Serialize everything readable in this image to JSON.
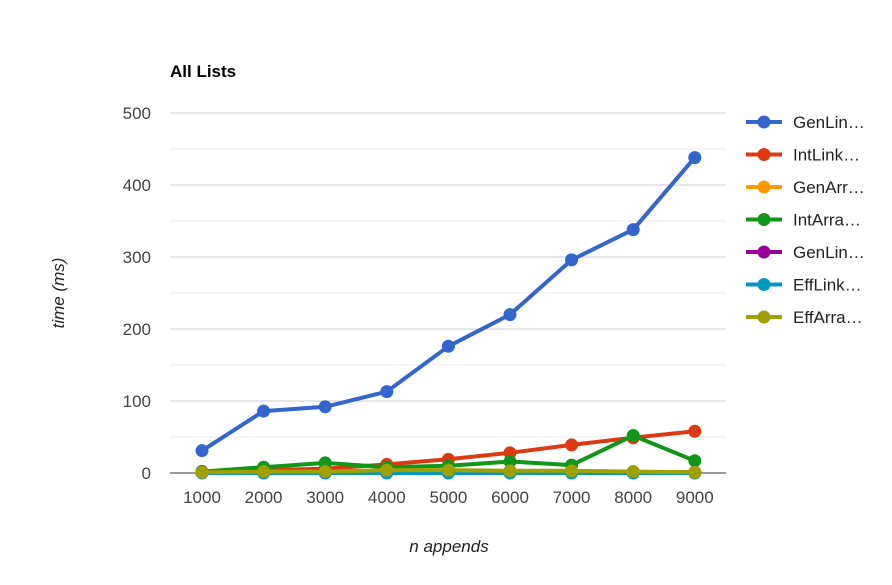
{
  "chart_data": {
    "type": "line",
    "title": "All Lists",
    "xlabel": "n appends",
    "ylabel": "time (ms)",
    "categories": [
      "1000",
      "2000",
      "3000",
      "4000",
      "5000",
      "6000",
      "7000",
      "8000",
      "9000"
    ],
    "ylim": [
      0,
      500
    ],
    "yticks": [
      0,
      100,
      200,
      300,
      400,
      500
    ],
    "grid": true,
    "legend_position": "right",
    "series": [
      {
        "name": "GenLin…",
        "color": "#3366cc",
        "values": [
          31,
          86,
          92,
          113,
          176,
          220,
          296,
          338,
          438
        ]
      },
      {
        "name": "IntLink…",
        "color": "#dc3912",
        "values": [
          2,
          4,
          6,
          12,
          19,
          28,
          39,
          49,
          58
        ]
      },
      {
        "name": "GenArr…",
        "color": "#ff9900",
        "values": [
          1,
          1,
          1,
          1,
          1,
          1,
          1,
          1,
          1
        ]
      },
      {
        "name": "IntArra…",
        "color": "#109618",
        "values": [
          2,
          8,
          14,
          8,
          10,
          16,
          11,
          52,
          17
        ]
      },
      {
        "name": "GenLin…",
        "color": "#990099",
        "values": [
          1,
          1,
          1,
          1,
          1,
          1,
          1,
          1,
          1
        ]
      },
      {
        "name": "EffLink…",
        "color": "#0099c6",
        "values": [
          0,
          0,
          0,
          0,
          0,
          0,
          0,
          0,
          0
        ]
      },
      {
        "name": "EffArra…",
        "color": "#a0a000",
        "values": [
          1,
          2,
          2,
          4,
          4,
          3,
          3,
          2,
          1
        ]
      }
    ]
  }
}
